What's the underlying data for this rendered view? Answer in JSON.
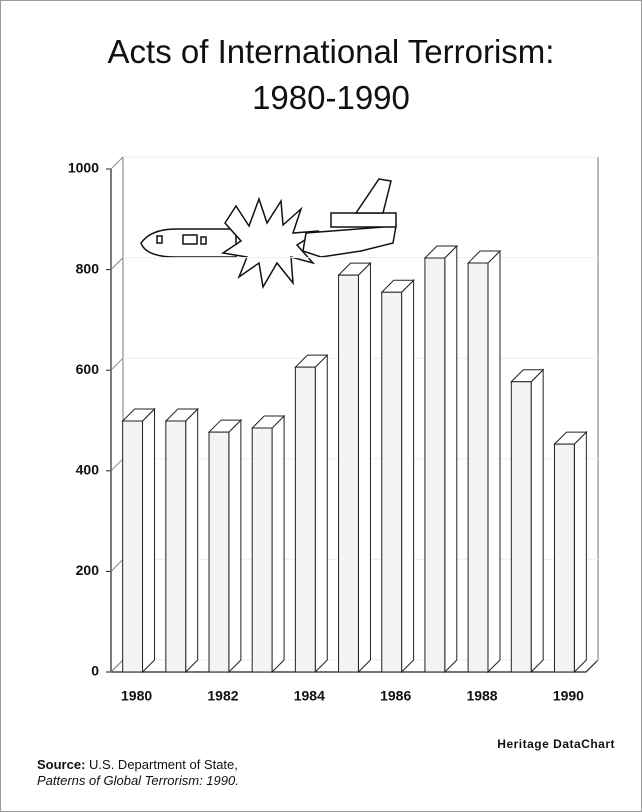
{
  "chart_data": {
    "type": "bar",
    "title": "Acts of International Terrorism: 1980-1990",
    "categories": [
      "1980",
      null,
      "1982",
      null,
      "1984",
      null,
      "1986",
      null,
      "1988",
      null,
      "1990"
    ],
    "values": [
      499,
      499,
      477,
      485,
      606,
      789,
      755,
      823,
      813,
      577,
      453
    ],
    "color": "#f4f4f2",
    "ylim": [
      0,
      1000
    ],
    "yticks": [
      0,
      200,
      400,
      600,
      800,
      1000
    ],
    "grid": true,
    "credit": "Heritage DataChart",
    "source_label": "Source:",
    "source_text": "U.S. Department of State,",
    "source_publication": "Patterns of Global Terrorism: 1990."
  }
}
